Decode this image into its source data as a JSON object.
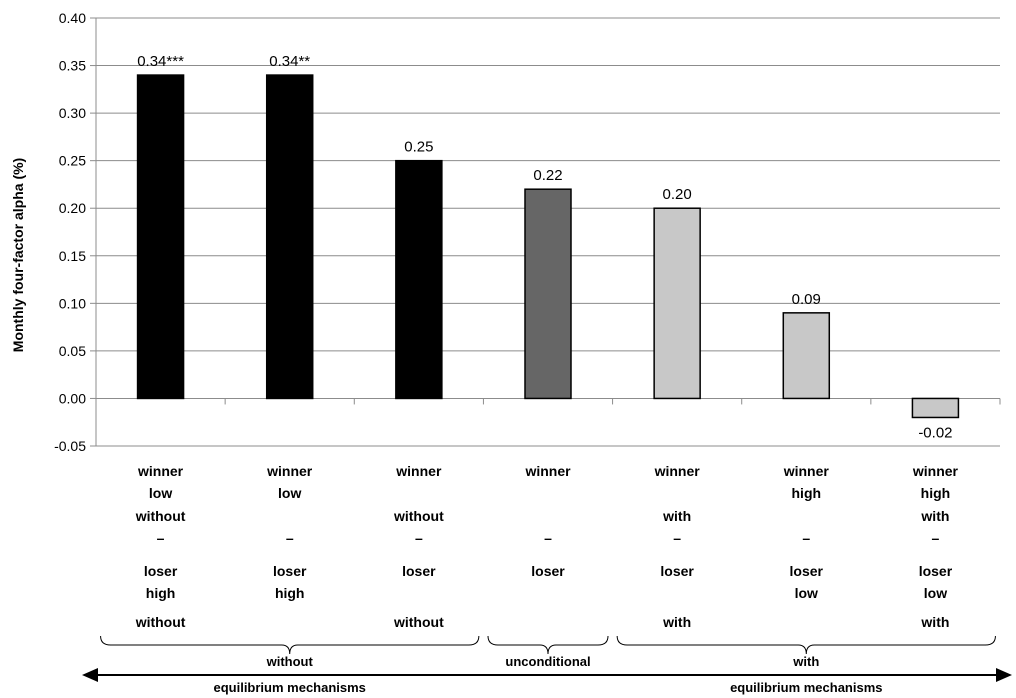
{
  "chart_data": {
    "type": "bar",
    "title": "",
    "xlabel": "",
    "ylabel": "Monthly four-factor alpha (%)",
    "ylim": [
      -0.05,
      0.4
    ],
    "yticks": [
      "-0.05",
      "0.00",
      "0.05",
      "0.10",
      "0.15",
      "0.20",
      "0.25",
      "0.30",
      "0.35",
      "0.40"
    ],
    "grid": "horizontal",
    "categories": [
      [
        "winner",
        "low",
        "without",
        "–",
        "loser",
        "high",
        "without"
      ],
      [
        "winner",
        "low",
        "",
        "–",
        "loser",
        "high",
        ""
      ],
      [
        "winner",
        "",
        "without",
        "–",
        "loser",
        "",
        "without"
      ],
      [
        "winner",
        "",
        "",
        "–",
        "loser",
        "",
        ""
      ],
      [
        "winner",
        "",
        "with",
        "–",
        "loser",
        "",
        "with"
      ],
      [
        "winner",
        "high",
        "",
        "–",
        "loser",
        "low",
        ""
      ],
      [
        "winner",
        "high",
        "with",
        "–",
        "loser",
        "low",
        "with"
      ]
    ],
    "values": [
      0.34,
      0.34,
      0.25,
      0.22,
      0.2,
      0.09,
      -0.02
    ],
    "data_labels": [
      "0.34***",
      "0.34**",
      "0.25",
      "0.22",
      "0.20",
      "0.09",
      "-0.02"
    ],
    "colors": [
      "#000000",
      "#000000",
      "#000000",
      "#666666",
      "#c8c8c8",
      "#c8c8c8",
      "#c8c8c8"
    ],
    "groups": [
      {
        "label": "without",
        "first": 0,
        "last": 2
      },
      {
        "label": "unconditional",
        "first": 3,
        "last": 3
      },
      {
        "label": "with",
        "first": 4,
        "last": 6
      }
    ],
    "arrow_labels": {
      "left": "equilibrium mechanisms",
      "right": "equilibrium mechanisms"
    }
  }
}
